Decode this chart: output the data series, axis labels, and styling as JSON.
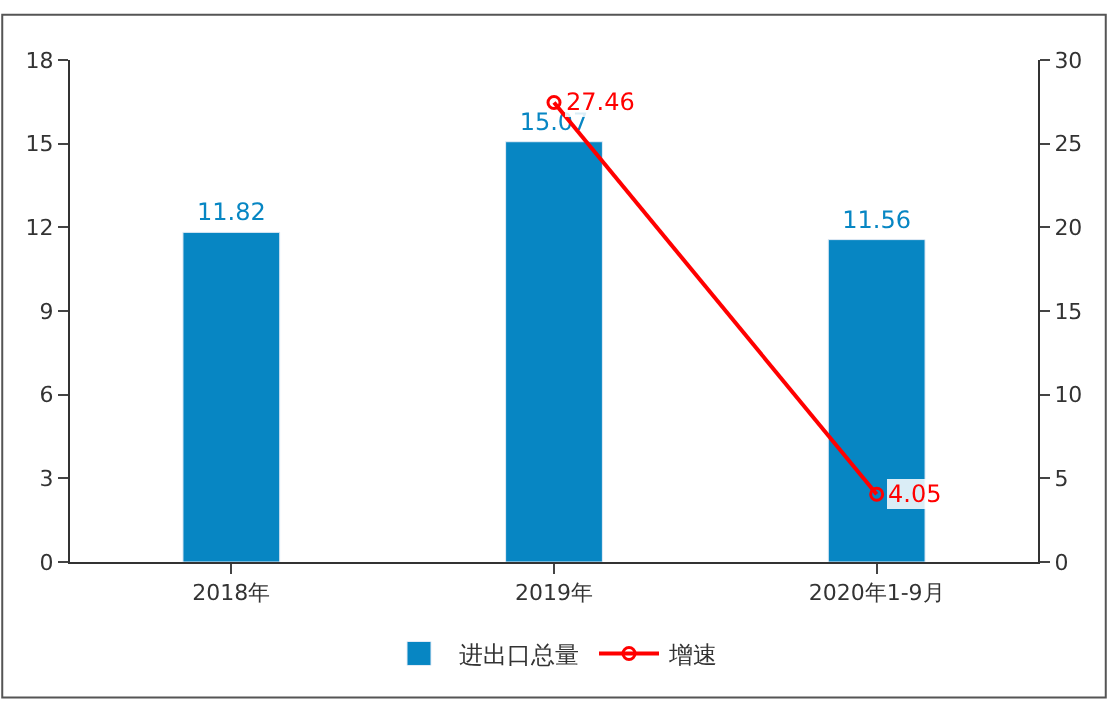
{
  "chart_data": {
    "type": "bar",
    "categories": [
      "2018年",
      "2019年",
      "2020年1-9月"
    ],
    "series": [
      {
        "name": "进出口总量",
        "color": "#0786c3",
        "values": [
          11.82,
          15.07,
          11.56
        ]
      },
      {
        "name": "增速",
        "type": "line",
        "axis": "y2",
        "color": "#ff0000",
        "values": [
          null,
          27.46,
          4.05
        ],
        "marker": "circle"
      }
    ],
    "data_labels": true,
    "ylim": [
      0,
      18
    ],
    "yticks": [
      0,
      3,
      6,
      9,
      12,
      15,
      18
    ],
    "y2lim": [
      0,
      30
    ],
    "y2ticks": [
      0,
      5,
      10,
      15,
      20,
      25,
      30
    ],
    "legend": "bottom"
  }
}
